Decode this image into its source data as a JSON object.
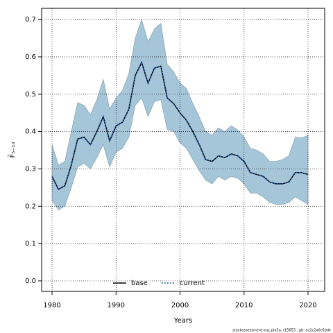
{
  "chart_data": {
    "type": "line",
    "x_label": "Years",
    "y_label": "F̄₅₋₁₀",
    "footer": "stockassessment.org, pla5a, r15653 , git: ec2c2a0c6dde",
    "x": [
      1980,
      1981,
      1982,
      1983,
      1984,
      1985,
      1986,
      1987,
      1988,
      1989,
      1990,
      1991,
      1992,
      1993,
      1994,
      1995,
      1996,
      1997,
      1998,
      1999,
      2000,
      2001,
      2002,
      2003,
      2004,
      2005,
      2006,
      2007,
      2008,
      2009,
      2010,
      2011,
      2012,
      2013,
      2014,
      2015,
      2016,
      2017,
      2018,
      2019,
      2020
    ],
    "band": {
      "color": "#a5c5d8",
      "edge": "#7d98a6",
      "upper": [
        0.365,
        0.31,
        0.32,
        0.4,
        0.478,
        0.47,
        0.445,
        0.485,
        0.54,
        0.46,
        0.49,
        0.51,
        0.555,
        0.65,
        0.7,
        0.64,
        0.675,
        0.69,
        0.58,
        0.56,
        0.53,
        0.515,
        0.475,
        0.44,
        0.4,
        0.39,
        0.41,
        0.4,
        0.415,
        0.405,
        0.385,
        0.355,
        0.35,
        0.34,
        0.32,
        0.32,
        0.325,
        0.335,
        0.385,
        0.383,
        0.39
      ],
      "lower": [
        0.215,
        0.19,
        0.2,
        0.25,
        0.305,
        0.315,
        0.3,
        0.33,
        0.365,
        0.305,
        0.345,
        0.355,
        0.385,
        0.47,
        0.49,
        0.44,
        0.48,
        0.485,
        0.405,
        0.4,
        0.37,
        0.355,
        0.325,
        0.295,
        0.27,
        0.26,
        0.28,
        0.27,
        0.28,
        0.275,
        0.26,
        0.235,
        0.235,
        0.225,
        0.21,
        0.205,
        0.205,
        0.21,
        0.225,
        0.215,
        0.205
      ]
    },
    "series": [
      {
        "name": "base",
        "color": "#000000",
        "dash": false,
        "values": [
          0.28,
          0.245,
          0.255,
          0.31,
          0.38,
          0.385,
          0.365,
          0.4,
          0.44,
          0.375,
          0.415,
          0.425,
          0.46,
          0.55,
          0.585,
          0.53,
          0.57,
          0.575,
          0.49,
          0.475,
          0.45,
          0.43,
          0.4,
          0.365,
          0.325,
          0.32,
          0.335,
          0.33,
          0.34,
          0.335,
          0.32,
          0.29,
          0.285,
          0.28,
          0.265,
          0.26,
          0.26,
          0.265,
          0.29,
          0.29,
          0.285
        ]
      },
      {
        "name": "current",
        "color": "#1f5aa6",
        "dash": true,
        "values": [
          0.28,
          0.245,
          0.255,
          0.31,
          0.38,
          0.385,
          0.365,
          0.4,
          0.44,
          0.375,
          0.415,
          0.425,
          0.46,
          0.55,
          0.585,
          0.53,
          0.57,
          0.575,
          0.49,
          0.475,
          0.45,
          0.43,
          0.4,
          0.365,
          0.325,
          0.32,
          0.335,
          0.33,
          0.34,
          0.335,
          0.32,
          0.29,
          0.285,
          0.28,
          0.265,
          0.26,
          0.26,
          0.265,
          0.29,
          0.29,
          0.285
        ]
      }
    ],
    "xlim": [
      1978.37,
      2022.6
    ],
    "ylim": [
      -0.028,
      0.73
    ],
    "xticks": [
      1980,
      1990,
      2000,
      2010,
      2020
    ],
    "yticks": [
      {
        "value": 0,
        "label": "0.0"
      },
      0.1,
      0.2,
      0.3,
      0.4,
      0.5,
      0.6,
      0.7
    ],
    "grid": true,
    "legend": "bottom"
  }
}
